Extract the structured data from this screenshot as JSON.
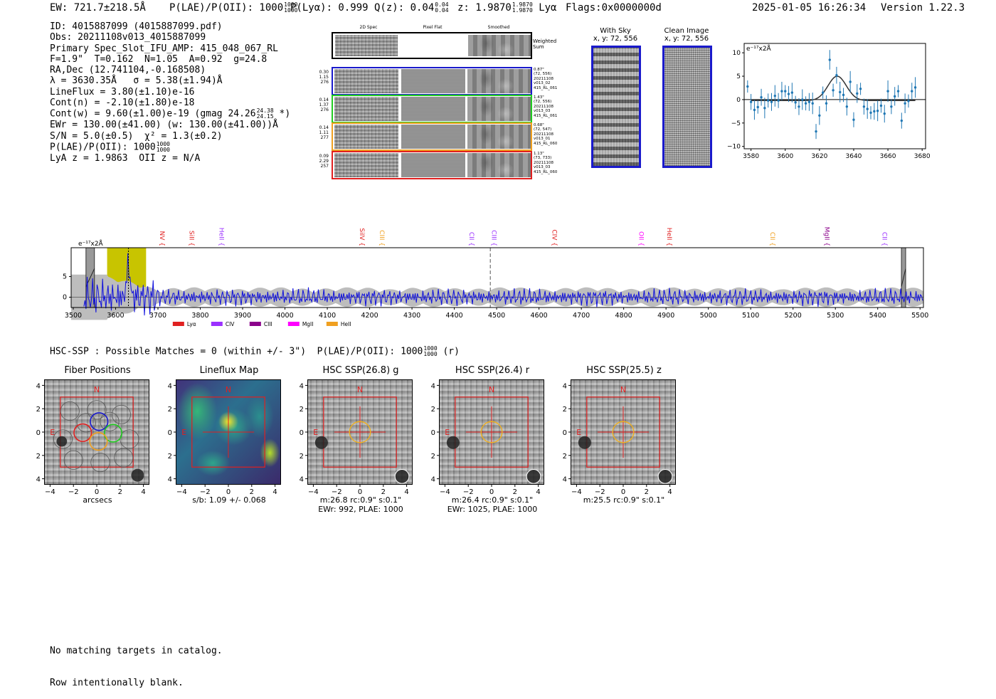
{
  "header": {
    "ew": "EW: 721.7±218.5Å",
    "plae_label": "P(LAE)/P(OII): 1000",
    "plae_hi": "1000",
    "plae_lo": "1000",
    "plya": "P(Lyα): 0.999",
    "qz_label": "Q(z): 0.04",
    "qz_hi": "0.04",
    "qz_lo": "0.04",
    "z_label": "z: 1.9870",
    "z_hi": "1.9870",
    "z_lo": "1.9870",
    "z_line": "Lyα",
    "flags": "Flags:0x0000000d",
    "timestamp": "2025-01-05 16:26:34",
    "version": "Version 1.22.3"
  },
  "info": {
    "id": "ID: 4015887099 (4015887099.pdf)",
    "obs": "Obs: 20211108v013_4015887099",
    "primary": "Primary Spec_Slot_IFU_AMP: 415_048_067_RL",
    "fit": "F=1.9\"  T=0.162  N=1.05  A=0.92  g=24.8",
    "radec": "RA,Dec (12.741104,-0.168508)",
    "lambda": "λ = 3630.35Å   σ = 5.38(±1.94)Å",
    "lineflux": "LineFlux = 3.80(±1.10)e-16",
    "contn": "Cont(n) = -2.10(±1.80)e-18",
    "contw": "Cont(w) = 9.60(±1.00)e-19 (gmag 24.26",
    "contw_hi": "24.38",
    "contw_lo": "24.15",
    "contw_tail": "*)",
    "ewr": "EWr = 130.00(±41.00) (w: 130.00(±41.00))Å",
    "sn": "S/N = 5.0(±0.5)  χ² = 1.3(±0.2)",
    "plae": "P(LAE)/P(OII): 1000",
    "plae_hi": "1000",
    "plae_lo": "1000",
    "lya": "LyA z = 1.9863  OII z = N/A"
  },
  "spec2d": {
    "col_headers": [
      "2D Spec",
      "Pixel Flat",
      "Smoothed"
    ],
    "weighted_label": "Weighted Sum",
    "rows": [
      {
        "color": "#1a1acc",
        "left": [
          "0.30",
          "1.15",
          "276"
        ],
        "right": [
          "0.87\"",
          "(72, 556)",
          "20211108",
          "v013_02",
          "415_RL_061"
        ]
      },
      {
        "color": "#22cc22",
        "left": [
          "0.14",
          "1.37",
          "276"
        ],
        "right": [
          "1.43\"",
          "(72, 556)",
          "20211108",
          "v013_03",
          "415_RL_061"
        ]
      },
      {
        "color": "#f0a020",
        "left": [
          "0.14",
          "1.11",
          "277"
        ],
        "right": [
          "0.68\"",
          "(72, 547)",
          "20211108",
          "v013_01",
          "415_RL_060"
        ]
      },
      {
        "color": "#e02020",
        "left": [
          "0.09",
          "2.29",
          "257"
        ],
        "right": [
          "1.13\"",
          "(73, 733)",
          "20211108",
          "v013_03",
          "415_RL_060"
        ]
      }
    ]
  },
  "sky": {
    "with_sky_title": "With Sky",
    "with_sky_xy": "x, y: 72, 556",
    "clean_title": "Clean Image",
    "clean_xy": "x, y: 72, 556"
  },
  "zoom_chart": {
    "type": "scatter",
    "unit_label": "e⁻¹⁷x2Å",
    "xlim": [
      3576,
      3682
    ],
    "ylim": [
      -10.5,
      12
    ],
    "xticks": [
      3580,
      3600,
      3620,
      3640,
      3660,
      3680
    ],
    "yticks": [
      10,
      5,
      0,
      -5,
      -10
    ],
    "gauss": {
      "mu": 3630.35,
      "sigma": 5.38,
      "amp": 5.2
    },
    "x": [
      3578,
      3580,
      3582,
      3584,
      3586,
      3588,
      3590,
      3592,
      3594,
      3596,
      3598,
      3600,
      3602,
      3604,
      3606,
      3608,
      3610,
      3612,
      3614,
      3616,
      3618,
      3620,
      3622,
      3624,
      3626,
      3628,
      3630,
      3632,
      3634,
      3636,
      3638,
      3640,
      3642,
      3644,
      3646,
      3648,
      3650,
      3652,
      3654,
      3656,
      3658,
      3660,
      3662,
      3664,
      3666,
      3668,
      3670,
      3672,
      3674,
      3676
    ],
    "y": [
      2.8,
      -0.5,
      -2.2,
      -1.6,
      0.5,
      -1.8,
      -0.2,
      -0.5,
      0.8,
      -0.2,
      1.8,
      1.8,
      1.2,
      1.5,
      -0.6,
      -1.5,
      0.0,
      -0.8,
      -0.5,
      -0.8,
      -6.8,
      -3.4,
      1.5,
      -0.8,
      8.5,
      2.0,
      5.2,
      1.6,
      1.0,
      -1.5,
      3.8,
      -4.3,
      1.3,
      2.3,
      -1.5,
      -2.0,
      -2.8,
      -2.5,
      -2.4,
      -1.3,
      -3.0,
      1.8,
      -1.5,
      0.7,
      1.8,
      -4.5,
      -0.8,
      -0.3,
      1.8,
      2.6
    ]
  },
  "spectrum": {
    "type": "line",
    "unit_label": "e⁻¹⁷x2Å",
    "xlim": [
      3495,
      5508
    ],
    "ylim": [
      -2.5,
      12
    ],
    "xticks": [
      3500,
      3600,
      3700,
      3800,
      3900,
      4000,
      4100,
      4200,
      4300,
      4400,
      4500,
      4600,
      4700,
      4800,
      4900,
      5000,
      5100,
      5200,
      5300,
      5400,
      5500
    ],
    "yticks": [
      5,
      0
    ],
    "highlight_range": [
      3580,
      3672
    ],
    "detection_lambda": 3630.35,
    "dashed_line_lambda": 4485,
    "masked_ranges": [
      [
        3530,
        3550
      ],
      [
        5456,
        5466
      ]
    ],
    "lines": [
      {
        "name": "NV",
        "lambda": 3700,
        "color": "#e02020"
      },
      {
        "name": "SiII",
        "lambda": 3770,
        "color": "#e02020"
      },
      {
        "name": "HeII",
        "lambda": 3840,
        "color": "#9b30ff"
      },
      {
        "name": "SiIV",
        "lambda": 4172,
        "color": "#e02020"
      },
      {
        "name": "CIII",
        "lambda": 4219,
        "color": "#f0a020"
      },
      {
        "name": "CII",
        "lambda": 4431,
        "color": "#9b30ff"
      },
      {
        "name": "CIII",
        "lambda": 4484,
        "color": "#9b30ff"
      },
      {
        "name": "CIV",
        "lambda": 4627,
        "color": "#e02020"
      },
      {
        "name": "OII",
        "lambda": 4832,
        "color": "#ff00ff"
      },
      {
        "name": "HeII",
        "lambda": 4898,
        "color": "#e02020"
      },
      {
        "name": "CII",
        "lambda": 5142,
        "color": "#f0a020"
      },
      {
        "name": "MgII",
        "lambda": 5270,
        "color": "#8b008b"
      },
      {
        "name": "CII",
        "lambda": 5406,
        "color": "#9b30ff"
      }
    ],
    "legend": [
      {
        "label": "Lyα",
        "color": "#e02020"
      },
      {
        "label": "CIV",
        "color": "#9b30ff"
      },
      {
        "label": "CIII",
        "color": "#8b008b"
      },
      {
        "label": "MgII",
        "color": "#ff00ff"
      },
      {
        "label": "HeII",
        "color": "#f0a020"
      }
    ]
  },
  "hsc": {
    "summary": "HSC-SSP : Possible Matches = 0 (within +/- 3\")  P(LAE)/P(OII): 1000",
    "summary_hi": "1000",
    "summary_lo": "1000",
    "summary_tail": "(r)",
    "compass_n": "N",
    "compass_e": "E",
    "xticks": [
      "−4",
      "−2",
      "0",
      "2",
      "4"
    ],
    "yticks": [
      "4",
      "2",
      "0",
      "−2",
      "−4"
    ],
    "panels": [
      {
        "title": "Fiber Positions",
        "sub1": "arcsecs",
        "sub2": ""
      },
      {
        "title": "Lineflux Map",
        "sub1": "s/b: 1.09 +/- 0.068",
        "sub2": ""
      },
      {
        "title": "HSC SSP(26.8) g",
        "sub1": "m:26.8 rc:0.9\"  s:0.1\"",
        "sub2": "EWr: 992, PLAE: 1000"
      },
      {
        "title": "HSC SSP(26.4) r",
        "sub1": "m:26.4 rc:0.9\"  s:0.1\"",
        "sub2": "EWr: 1025, PLAE: 1000"
      },
      {
        "title": "HSC SSP(25.5) z",
        "sub1": "m:25.5 rc:0.9\"  s:0.1\"",
        "sub2": ""
      }
    ]
  },
  "footer": {
    "line1": "No matching targets in catalog.",
    "line2": "Row intentionally blank."
  }
}
